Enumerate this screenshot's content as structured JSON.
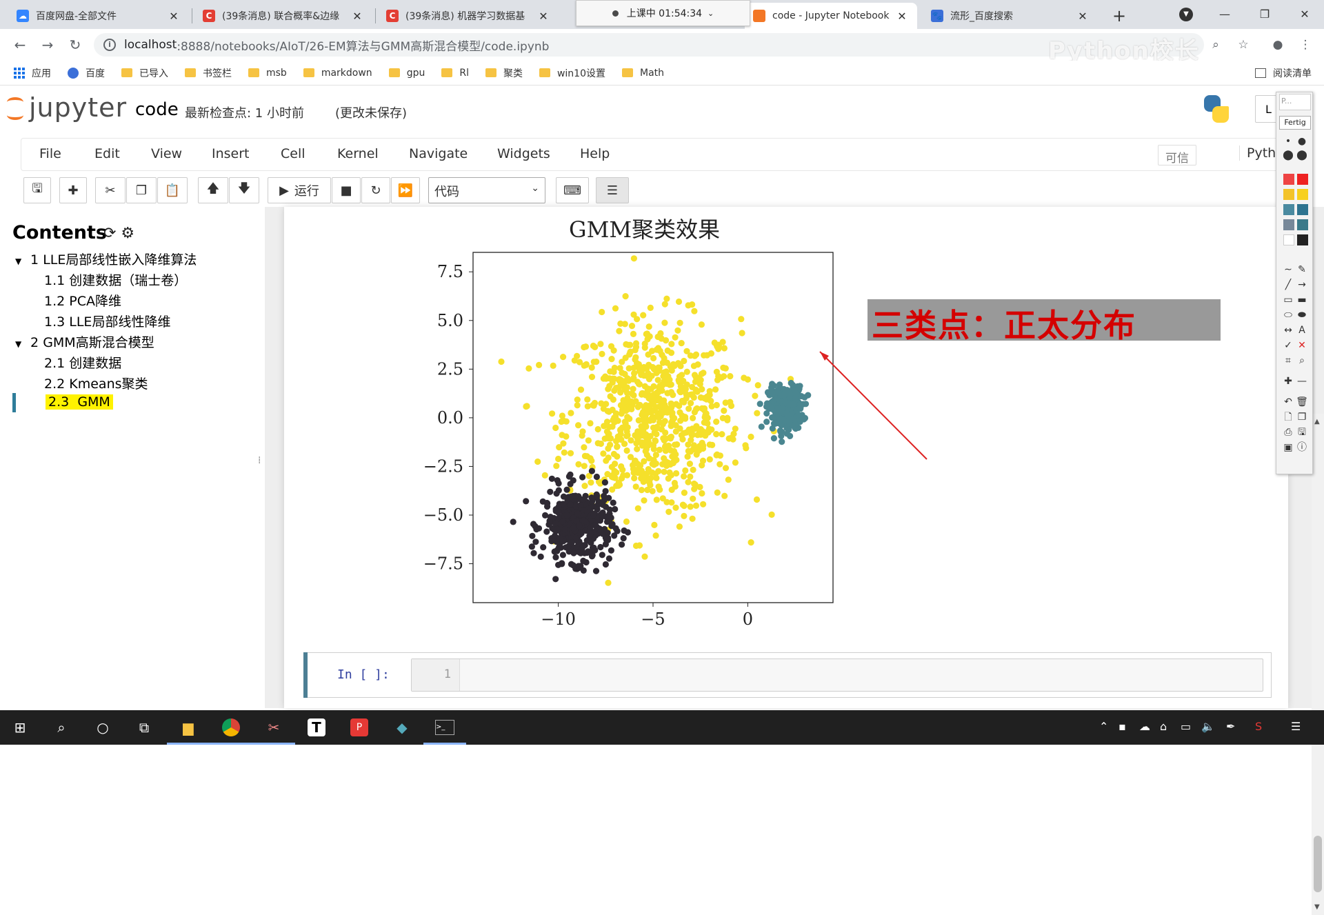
{
  "browser": {
    "tabs": [
      {
        "label": "百度网盘-全部文件",
        "icon": "baidu-pan-icon"
      },
      {
        "label": "(39条消息) 联合概率&边缘",
        "icon": "csdn-icon"
      },
      {
        "label": "(39条消息) 机器学习数据基",
        "icon": "csdn-icon"
      },
      {
        "label": "code - Jupyter Notebook",
        "icon": "jupyter-icon"
      },
      {
        "label": "流形_百度搜索",
        "icon": "baidu-icon"
      }
    ],
    "recording": "上课中 01:54:34",
    "url_host": "localhost",
    "url_path": ":8888/notebooks/AIoT/26-EM算法与GMM高斯混合模型/code.ipynb",
    "watermark": "Python校长",
    "bookmarks": [
      "应用",
      "百度",
      "已导入",
      "书签栏",
      "msb",
      "markdown",
      "gpu",
      "Rl",
      "聚类",
      "win10设置",
      "Math"
    ],
    "reading_list": "阅读清单"
  },
  "jupyter": {
    "logo": "jupyter",
    "notebook_name": "code",
    "checkpoint": "最新检查点: 1 小时前",
    "unsaved": "(更改未保存)",
    "logout": "L",
    "menu": [
      "File",
      "Edit",
      "View",
      "Insert",
      "Cell",
      "Kernel",
      "Navigate",
      "Widgets",
      "Help"
    ],
    "trusted": "可信",
    "kernel": "Pytho",
    "toolbar": {
      "run_label": "运行",
      "cell_type": "代码"
    }
  },
  "toc": {
    "title": "Contents",
    "items": [
      {
        "num": "1",
        "label": "LLE局部线性嵌入降维算法",
        "level": 1
      },
      {
        "num": "1.1",
        "label": "创建数据（瑞士卷）",
        "level": 2
      },
      {
        "num": "1.2",
        "label": "PCA降维",
        "level": 2
      },
      {
        "num": "1.3",
        "label": "LLE局部线性降维",
        "level": 2
      },
      {
        "num": "2",
        "label": "GMM高斯混合模型",
        "level": 1
      },
      {
        "num": "2.1",
        "label": "创建数据",
        "level": 2
      },
      {
        "num": "2.2",
        "label": "Kmeans聚类",
        "level": 2
      },
      {
        "num": "2.3",
        "label": "GMM",
        "level": 2,
        "selected": true
      }
    ]
  },
  "chart_data": {
    "type": "scatter",
    "title": "GMM聚类效果",
    "xlabel": "",
    "ylabel": "",
    "xlim": [
      -14.5,
      4.5
    ],
    "ylim": [
      -9.5,
      8.5
    ],
    "xticks": [
      -10,
      -5,
      0
    ],
    "xtick_labels": [
      "−10",
      "−5",
      "0"
    ],
    "yticks": [
      7.5,
      5.0,
      2.5,
      0.0,
      -2.5,
      -5.0,
      -7.5
    ],
    "ytick_labels": [
      "7.5",
      "5.0",
      "2.5",
      "0.0",
      "−2.5",
      "−5.0",
      "−7.5"
    ],
    "grid": false,
    "series": [
      {
        "color": "#fde725",
        "center": [
          -5,
          0
        ],
        "spread": [
          2.3,
          2.5
        ],
        "count": 750
      },
      {
        "color": "#35b779",
        "center": [
          2,
          0.5
        ],
        "spread": [
          0.45,
          0.55
        ],
        "count": 320
      },
      {
        "color": "#31302f",
        "center": [
          -9,
          -5.5
        ],
        "spread": [
          0.9,
          0.95
        ],
        "count": 420
      }
    ],
    "series_colors_display": [
      "#f5e02b",
      "#4a8690",
      "#2f2a33"
    ]
  },
  "annotation": {
    "text": "三类点：正太分布"
  },
  "cell": {
    "prompt": "In [ ]:",
    "line_number": "1"
  },
  "palette": {
    "header": "P...",
    "done": "Fertig"
  },
  "taskbar": {
    "apps": [
      "start",
      "search",
      "cortana",
      "task-view",
      "explorer",
      "chrome",
      "snip",
      "typora",
      "pdf",
      "vscode",
      "terminal"
    ]
  }
}
